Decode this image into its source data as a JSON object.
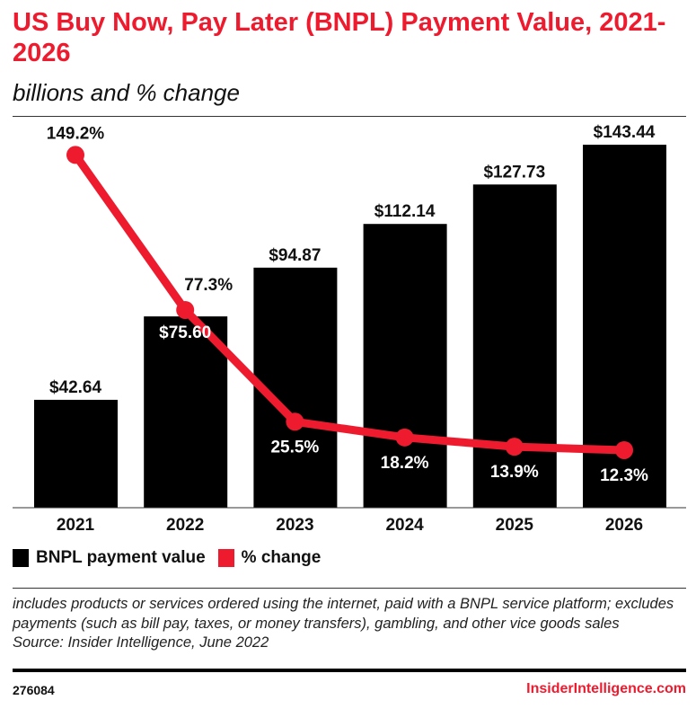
{
  "chart_data": {
    "type": "bar+line",
    "title": "US Buy Now, Pay Later (BNPL) Payment Value, 2021-2026",
    "subtitle": "billions and % change",
    "categories": [
      "2021",
      "2022",
      "2023",
      "2024",
      "2025",
      "2026"
    ],
    "series": [
      {
        "name": "BNPL payment value",
        "type": "bar",
        "color": "#000000",
        "values": [
          42.64,
          75.6,
          94.87,
          112.14,
          127.73,
          143.44
        ],
        "labels": [
          "$42.64",
          "$75.60",
          "$94.87",
          "$112.14",
          "$127.73",
          "$143.44"
        ]
      },
      {
        "name": "% change",
        "type": "line",
        "color": "#ee1b2f",
        "values": [
          149.2,
          77.3,
          25.5,
          18.2,
          13.9,
          12.3
        ],
        "labels": [
          "149.2%",
          "77.3%",
          "25.5%",
          "18.2%",
          "13.9%",
          "12.3%"
        ]
      }
    ],
    "grid": false,
    "legend_placement": "bottom-left"
  },
  "notes": "includes products or services ordered using the internet, paid with a BNPL service platform; excludes payments (such as bill pay, taxes, or money transfers), gambling, and other vice goods sales",
  "source": "Source: Insider Intelligence, June 2022",
  "footer": {
    "id": "276084",
    "brand": "InsiderIntelligence.com"
  }
}
